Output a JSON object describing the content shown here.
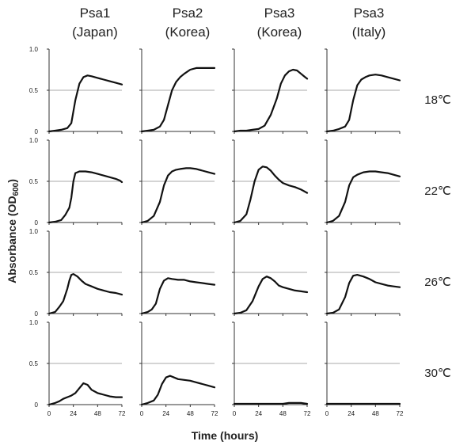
{
  "figure": {
    "column_titles": [
      {
        "line1": "Psa1",
        "line2": "(Japan)"
      },
      {
        "line1": "Psa2",
        "line2": "(Korea)"
      },
      {
        "line1": "Psa3",
        "line2": "(Korea)"
      },
      {
        "line1": "Psa3",
        "line2": "(Italy)"
      }
    ],
    "row_labels": [
      "18℃",
      "22℃",
      "26℃",
      "30℃"
    ],
    "ylabel": {
      "main": "Absorbance (OD",
      "sub": "600",
      "close": ")"
    },
    "xlabel": "Time  (hours)",
    "y_tick_labels": [
      "0",
      "0.5",
      "1.0"
    ],
    "x_tick_labels": [
      "0",
      "24",
      "48",
      "72"
    ]
  },
  "chart_data": {
    "type": "line",
    "title": "",
    "xlabel": "Time  (hours)",
    "ylabel": "Absorbance (OD600)",
    "xlim": [
      0,
      72
    ],
    "ylim": [
      0,
      1.0
    ],
    "xticks": [
      0,
      24,
      48,
      72
    ],
    "yticks": [
      0,
      0.5,
      1.0
    ],
    "reference_line": 0.5,
    "columns": [
      "Psa1 (Japan)",
      "Psa2 (Korea)",
      "Psa3 (Korea)",
      "Psa3 (Italy)"
    ],
    "rows": [
      "18℃",
      "22℃",
      "26℃",
      "30℃"
    ],
    "colors": {
      "line": "#111111",
      "axis": "#333333",
      "reference": "#555555"
    },
    "panels": [
      {
        "strain": "Psa1 (Japan)",
        "temp": "18℃",
        "x": [
          0,
          6,
          12,
          18,
          22,
          26,
          30,
          34,
          38,
          42,
          48,
          54,
          60,
          66,
          72
        ],
        "y": [
          0,
          0.01,
          0.02,
          0.04,
          0.1,
          0.38,
          0.58,
          0.66,
          0.68,
          0.67,
          0.65,
          0.63,
          0.61,
          0.59,
          0.57
        ]
      },
      {
        "strain": "Psa2 (Korea)",
        "temp": "18℃",
        "x": [
          0,
          6,
          12,
          18,
          22,
          26,
          30,
          34,
          38,
          42,
          48,
          54,
          60,
          66,
          72
        ],
        "y": [
          0,
          0.01,
          0.02,
          0.06,
          0.14,
          0.32,
          0.5,
          0.6,
          0.66,
          0.7,
          0.75,
          0.77,
          0.77,
          0.77,
          0.77
        ]
      },
      {
        "strain": "Psa3 (Korea)",
        "temp": "18℃",
        "x": [
          0,
          6,
          12,
          18,
          24,
          30,
          36,
          42,
          46,
          50,
          54,
          58,
          62,
          66,
          70,
          72
        ],
        "y": [
          0,
          0.01,
          0.01,
          0.02,
          0.03,
          0.07,
          0.2,
          0.4,
          0.58,
          0.68,
          0.73,
          0.75,
          0.74,
          0.7,
          0.66,
          0.64
        ]
      },
      {
        "strain": "Psa3 (Italy)",
        "temp": "18℃",
        "x": [
          0,
          6,
          12,
          18,
          22,
          26,
          30,
          34,
          38,
          42,
          48,
          54,
          60,
          66,
          72
        ],
        "y": [
          0,
          0.01,
          0.03,
          0.06,
          0.14,
          0.38,
          0.56,
          0.63,
          0.66,
          0.68,
          0.69,
          0.68,
          0.66,
          0.64,
          0.62
        ]
      },
      {
        "strain": "Psa1 (Japan)",
        "temp": "22℃",
        "x": [
          0,
          6,
          12,
          16,
          20,
          22,
          24,
          26,
          30,
          36,
          42,
          48,
          54,
          60,
          66,
          70,
          72
        ],
        "y": [
          0,
          0.01,
          0.03,
          0.09,
          0.18,
          0.3,
          0.5,
          0.6,
          0.62,
          0.62,
          0.61,
          0.59,
          0.57,
          0.55,
          0.53,
          0.51,
          0.49
        ]
      },
      {
        "strain": "Psa2 (Korea)",
        "temp": "22℃",
        "x": [
          0,
          6,
          12,
          18,
          22,
          26,
          30,
          34,
          38,
          44,
          48,
          54,
          60,
          66,
          72
        ],
        "y": [
          0,
          0.02,
          0.08,
          0.25,
          0.45,
          0.57,
          0.62,
          0.64,
          0.65,
          0.66,
          0.66,
          0.65,
          0.63,
          0.61,
          0.59
        ]
      },
      {
        "strain": "Psa3 (Korea)",
        "temp": "22℃",
        "x": [
          0,
          6,
          12,
          16,
          20,
          24,
          28,
          32,
          36,
          40,
          44,
          48,
          54,
          60,
          66,
          72
        ],
        "y": [
          0,
          0.02,
          0.1,
          0.28,
          0.5,
          0.64,
          0.68,
          0.67,
          0.63,
          0.57,
          0.52,
          0.48,
          0.45,
          0.43,
          0.4,
          0.36
        ]
      },
      {
        "strain": "Psa3 (Italy)",
        "temp": "22℃",
        "x": [
          0,
          6,
          12,
          18,
          22,
          26,
          30,
          36,
          42,
          48,
          54,
          60,
          66,
          72
        ],
        "y": [
          0,
          0.02,
          0.08,
          0.25,
          0.45,
          0.55,
          0.58,
          0.61,
          0.62,
          0.62,
          0.61,
          0.6,
          0.58,
          0.56
        ]
      },
      {
        "strain": "Psa1 (Japan)",
        "temp": "26℃",
        "x": [
          0,
          6,
          10,
          14,
          18,
          20,
          22,
          24,
          28,
          32,
          36,
          42,
          48,
          54,
          60,
          66,
          72
        ],
        "y": [
          0,
          0.02,
          0.08,
          0.15,
          0.3,
          0.4,
          0.47,
          0.48,
          0.45,
          0.4,
          0.36,
          0.33,
          0.3,
          0.28,
          0.26,
          0.25,
          0.23
        ]
      },
      {
        "strain": "Psa2 (Korea)",
        "temp": "26℃",
        "x": [
          0,
          6,
          10,
          14,
          18,
          22,
          26,
          30,
          36,
          42,
          48,
          54,
          60,
          66,
          72
        ],
        "y": [
          0,
          0.02,
          0.05,
          0.12,
          0.3,
          0.4,
          0.43,
          0.42,
          0.41,
          0.41,
          0.39,
          0.38,
          0.37,
          0.36,
          0.35
        ]
      },
      {
        "strain": "Psa3 (Korea)",
        "temp": "26℃",
        "x": [
          0,
          6,
          12,
          18,
          24,
          28,
          32,
          36,
          40,
          44,
          48,
          54,
          60,
          66,
          72
        ],
        "y": [
          0,
          0.01,
          0.04,
          0.15,
          0.33,
          0.42,
          0.45,
          0.43,
          0.39,
          0.34,
          0.32,
          0.3,
          0.28,
          0.27,
          0.26
        ]
      },
      {
        "strain": "Psa3 (Italy)",
        "temp": "26℃",
        "x": [
          0,
          6,
          12,
          18,
          22,
          26,
          30,
          36,
          42,
          48,
          54,
          60,
          66,
          72
        ],
        "y": [
          0,
          0.01,
          0.05,
          0.2,
          0.37,
          0.46,
          0.47,
          0.45,
          0.42,
          0.38,
          0.36,
          0.34,
          0.33,
          0.32
        ]
      },
      {
        "strain": "Psa1 (Japan)",
        "temp": "30℃",
        "x": [
          0,
          6,
          10,
          14,
          18,
          22,
          26,
          30,
          34,
          38,
          42,
          48,
          54,
          60,
          66,
          72
        ],
        "y": [
          0,
          0.02,
          0.04,
          0.07,
          0.09,
          0.11,
          0.14,
          0.2,
          0.26,
          0.24,
          0.18,
          0.14,
          0.12,
          0.1,
          0.09,
          0.09
        ]
      },
      {
        "strain": "Psa2 (Korea)",
        "temp": "30℃",
        "x": [
          0,
          6,
          12,
          16,
          20,
          24,
          28,
          32,
          36,
          42,
          48,
          54,
          60,
          66,
          72
        ],
        "y": [
          0,
          0.02,
          0.05,
          0.12,
          0.25,
          0.33,
          0.35,
          0.33,
          0.31,
          0.3,
          0.29,
          0.27,
          0.25,
          0.23,
          0.21
        ]
      },
      {
        "strain": "Psa3 (Korea)",
        "temp": "30℃",
        "x": [
          0,
          12,
          24,
          36,
          48,
          54,
          60,
          66,
          72
        ],
        "y": [
          0.01,
          0.01,
          0.01,
          0.01,
          0.01,
          0.02,
          0.02,
          0.02,
          0.01
        ]
      },
      {
        "strain": "Psa3 (Italy)",
        "temp": "30℃",
        "x": [
          0,
          12,
          24,
          36,
          48,
          60,
          72
        ],
        "y": [
          0.01,
          0.01,
          0.01,
          0.01,
          0.01,
          0.01,
          0.01
        ]
      }
    ]
  }
}
